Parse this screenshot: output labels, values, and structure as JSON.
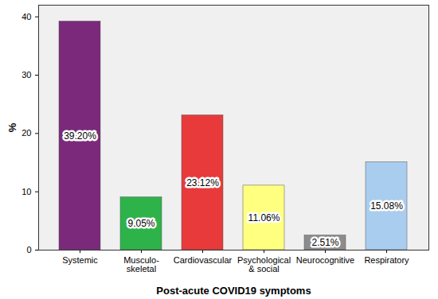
{
  "chart_data": {
    "type": "bar",
    "x_label": "Post-acute COVID19 symptoms",
    "y_label": "%",
    "categories": [
      "Systemic",
      "Musculo-\nskeletal",
      "Cardiovascular",
      "Psychological\n& social",
      "Neurocognitive",
      "Respiratory"
    ],
    "values": [
      39.2,
      9.05,
      23.12,
      11.06,
      2.51,
      15.08
    ],
    "value_labels": [
      "39.20%",
      "9.05%",
      "23.12%",
      "11.06%",
      "2.51%",
      "15.08%"
    ],
    "colors": [
      "#7b2a7b",
      "#2eb34a",
      "#e83a3a",
      "#ffff80",
      "#8c8c8c",
      "#a9cdee"
    ],
    "ylim": [
      0,
      42
    ],
    "yticks": [
      0,
      10,
      20,
      30,
      40
    ],
    "data_labels": true,
    "grid": false
  }
}
